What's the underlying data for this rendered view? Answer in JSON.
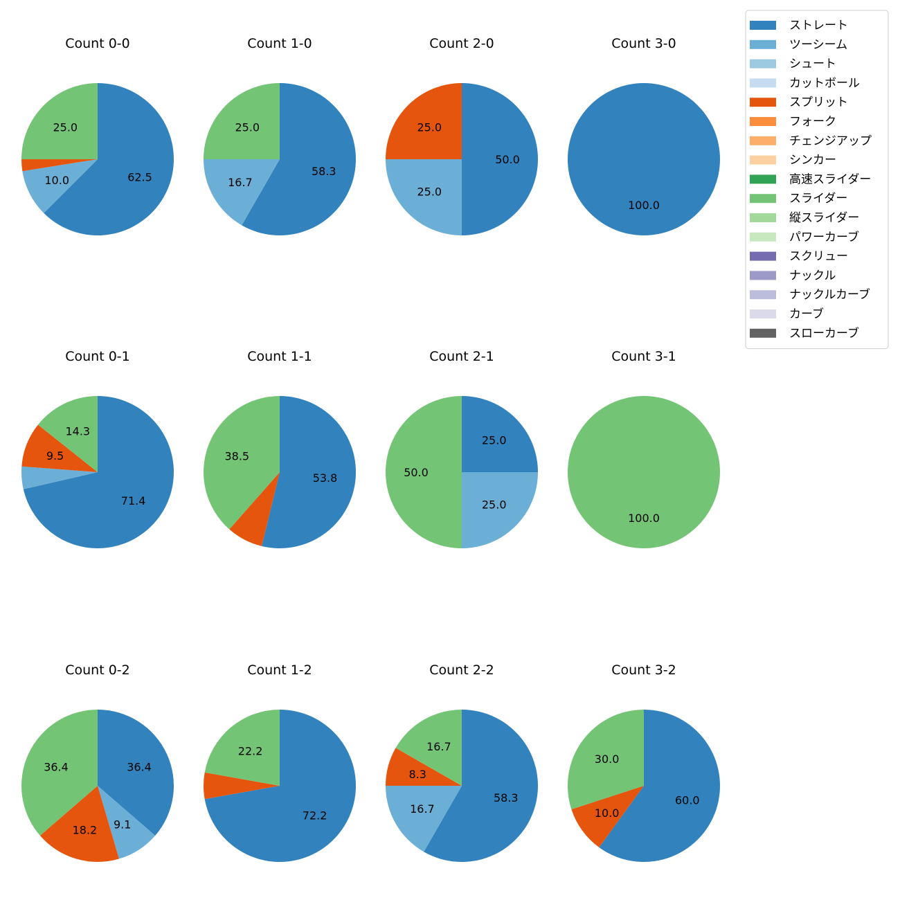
{
  "chart_data": {
    "type": "pie",
    "legend_position": "top-right",
    "legend": [
      {
        "name": "ストレート",
        "color": "#3182bd"
      },
      {
        "name": "ツーシーム",
        "color": "#6baed6"
      },
      {
        "name": "シュート",
        "color": "#9ecae1"
      },
      {
        "name": "カットボール",
        "color": "#c6dbef"
      },
      {
        "name": "スプリット",
        "color": "#e6550d"
      },
      {
        "name": "フォーク",
        "color": "#fd8d3c"
      },
      {
        "name": "チェンジアップ",
        "color": "#fdae6b"
      },
      {
        "name": "シンカー",
        "color": "#fdd0a2"
      },
      {
        "name": "高速スライダー",
        "color": "#31a354"
      },
      {
        "name": "スライダー",
        "color": "#74c476"
      },
      {
        "name": "縦スライダー",
        "color": "#a1d99b"
      },
      {
        "name": "パワーカーブ",
        "color": "#c7e9c0"
      },
      {
        "name": "スクリュー",
        "color": "#756bb1"
      },
      {
        "name": "ナックル",
        "color": "#9e9ac8"
      },
      {
        "name": "ナックルカーブ",
        "color": "#bcbddc"
      },
      {
        "name": "カーブ",
        "color": "#dadaeb"
      },
      {
        "name": "スローカーブ",
        "color": "#636363"
      }
    ],
    "pies": [
      {
        "title": "Count 0-0",
        "slices": [
          {
            "pitch": "ストレート",
            "value": 62.5,
            "label": "62.5"
          },
          {
            "pitch": "ツーシーム",
            "value": 10.0,
            "label": "10.0"
          },
          {
            "pitch": "スプリット",
            "value": 2.5,
            "label": ""
          },
          {
            "pitch": "スライダー",
            "value": 25.0,
            "label": "25.0"
          }
        ]
      },
      {
        "title": "Count 1-0",
        "slices": [
          {
            "pitch": "ストレート",
            "value": 58.3,
            "label": "58.3"
          },
          {
            "pitch": "ツーシーム",
            "value": 16.7,
            "label": "16.7"
          },
          {
            "pitch": "スライダー",
            "value": 25.0,
            "label": "25.0"
          }
        ]
      },
      {
        "title": "Count 2-0",
        "slices": [
          {
            "pitch": "ストレート",
            "value": 50.0,
            "label": "50.0"
          },
          {
            "pitch": "ツーシーム",
            "value": 25.0,
            "label": "25.0"
          },
          {
            "pitch": "スプリット",
            "value": 25.0,
            "label": "25.0"
          }
        ]
      },
      {
        "title": "Count 3-0",
        "slices": [
          {
            "pitch": "ストレート",
            "value": 100.0,
            "label": "100.0"
          }
        ]
      },
      {
        "title": "Count 0-1",
        "slices": [
          {
            "pitch": "ストレート",
            "value": 71.4,
            "label": "71.4"
          },
          {
            "pitch": "ツーシーム",
            "value": 4.8,
            "label": ""
          },
          {
            "pitch": "スプリット",
            "value": 9.5,
            "label": "9.5"
          },
          {
            "pitch": "スライダー",
            "value": 14.3,
            "label": "14.3"
          }
        ]
      },
      {
        "title": "Count 1-1",
        "slices": [
          {
            "pitch": "ストレート",
            "value": 53.8,
            "label": "53.8"
          },
          {
            "pitch": "スプリット",
            "value": 7.7,
            "label": ""
          },
          {
            "pitch": "スライダー",
            "value": 38.5,
            "label": "38.5"
          }
        ]
      },
      {
        "title": "Count 2-1",
        "slices": [
          {
            "pitch": "ストレート",
            "value": 25.0,
            "label": "25.0"
          },
          {
            "pitch": "ツーシーム",
            "value": 25.0,
            "label": "25.0"
          },
          {
            "pitch": "スライダー",
            "value": 50.0,
            "label": "50.0"
          }
        ]
      },
      {
        "title": "Count 3-1",
        "slices": [
          {
            "pitch": "スライダー",
            "value": 100.0,
            "label": "100.0"
          }
        ]
      },
      {
        "title": "Count 0-2",
        "slices": [
          {
            "pitch": "ストレート",
            "value": 36.4,
            "label": "36.4"
          },
          {
            "pitch": "ツーシーム",
            "value": 9.1,
            "label": "9.1"
          },
          {
            "pitch": "スプリット",
            "value": 18.2,
            "label": "18.2"
          },
          {
            "pitch": "スライダー",
            "value": 36.4,
            "label": "36.4"
          }
        ]
      },
      {
        "title": "Count 1-2",
        "slices": [
          {
            "pitch": "ストレート",
            "value": 72.2,
            "label": "72.2"
          },
          {
            "pitch": "スプリット",
            "value": 5.6,
            "label": ""
          },
          {
            "pitch": "スライダー",
            "value": 22.2,
            "label": "22.2"
          }
        ]
      },
      {
        "title": "Count 2-2",
        "slices": [
          {
            "pitch": "ストレート",
            "value": 58.3,
            "label": "58.3"
          },
          {
            "pitch": "ツーシーム",
            "value": 16.7,
            "label": "16.7"
          },
          {
            "pitch": "スプリット",
            "value": 8.3,
            "label": "8.3"
          },
          {
            "pitch": "スライダー",
            "value": 16.7,
            "label": "16.7"
          }
        ]
      },
      {
        "title": "Count 3-2",
        "slices": [
          {
            "pitch": "ストレート",
            "value": 60.0,
            "label": "60.0"
          },
          {
            "pitch": "スプリット",
            "value": 10.0,
            "label": "10.0"
          },
          {
            "pitch": "スライダー",
            "value": 30.0,
            "label": "30.0"
          }
        ]
      }
    ]
  }
}
